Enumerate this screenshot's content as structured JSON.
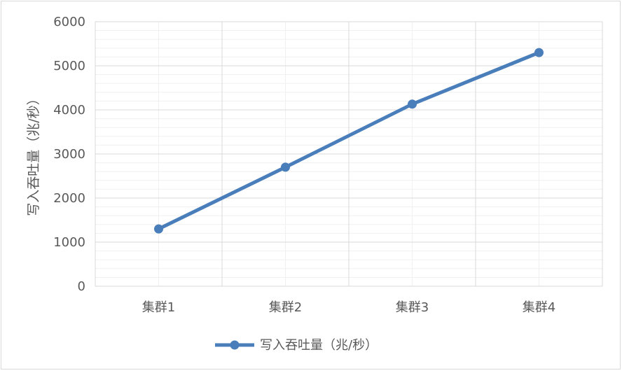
{
  "chart_data": {
    "type": "line",
    "title": "",
    "xlabel": "",
    "ylabel": "写入吞吐量（兆/秒）",
    "categories": [
      "集群1",
      "集群2",
      "集群3",
      "集群4"
    ],
    "series": [
      {
        "name": "写入吞吐量（兆/秒）",
        "values": [
          1300,
          2700,
          4130,
          5300
        ],
        "color": "#4a7ebb"
      }
    ],
    "ylim": [
      0,
      6000
    ],
    "yticks": [
      "0",
      "1000",
      "2000",
      "3000",
      "4000",
      "5000",
      "6000"
    ],
    "grid": true,
    "legend_position": "bottom"
  }
}
